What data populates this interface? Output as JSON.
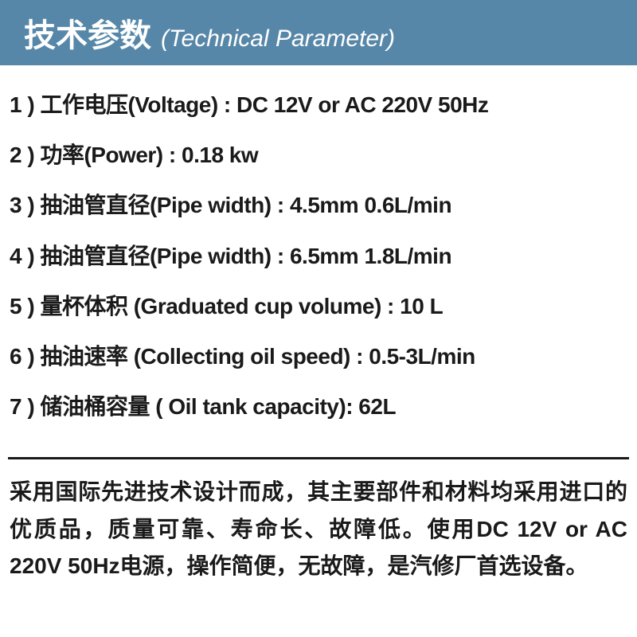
{
  "header": {
    "title_cn": "技术参数",
    "title_en": "(Technical Parameter)",
    "bg_color": "#5787a8",
    "text_color": "#ffffff"
  },
  "specs": [
    {
      "num": "1",
      "label_cn": "工作电压",
      "label_en": "Voltage",
      "value": "DC 12V or AC 220V 50Hz"
    },
    {
      "num": "2",
      "label_cn": "功率",
      "label_en": "Power",
      "value": "0.18 kw"
    },
    {
      "num": "3",
      "label_cn": "抽油管直径",
      "label_en": "Pipe width",
      "value": "4.5mm 0.6L/min"
    },
    {
      "num": "4",
      "label_cn": "抽油管直径",
      "label_en": "Pipe width",
      "value": "6.5mm 1.8L/min"
    },
    {
      "num": "5",
      "label_cn": "量杯体积",
      "label_en": "Graduated cup volume",
      "value": "10 L"
    },
    {
      "num": "6",
      "label_cn": "抽油速率",
      "label_en": "Collecting oil speed",
      "value": "0.5-3L/min"
    },
    {
      "num": "7",
      "label_cn": "储油桶容量",
      "label_en": "Oil tank capacity",
      "value": "62L"
    }
  ],
  "spec_spacing": [
    {
      "before_en": false,
      "after_en": false
    },
    {
      "before_en": false,
      "after_en": false
    },
    {
      "before_en": false,
      "after_en": false
    },
    {
      "before_en": false,
      "after_en": false
    },
    {
      "before_en": true,
      "after_en": false
    },
    {
      "before_en": true,
      "after_en": false
    },
    {
      "before_en": true,
      "after_en": true
    }
  ],
  "description": "采用国际先进技术设计而成，其主要部件和材料均采用进口的优质品，质量可靠、寿命长、故障低。使用DC 12V or AC 220V 50Hz电源，操作简便，无故障，是汽修厂首选设备。",
  "colors": {
    "text": "#1a1a1a",
    "background": "#ffffff",
    "divider": "#1a1a1a"
  },
  "typography": {
    "header_cn_size": 40,
    "header_en_size": 30,
    "body_size": 28,
    "weight": "bold"
  }
}
